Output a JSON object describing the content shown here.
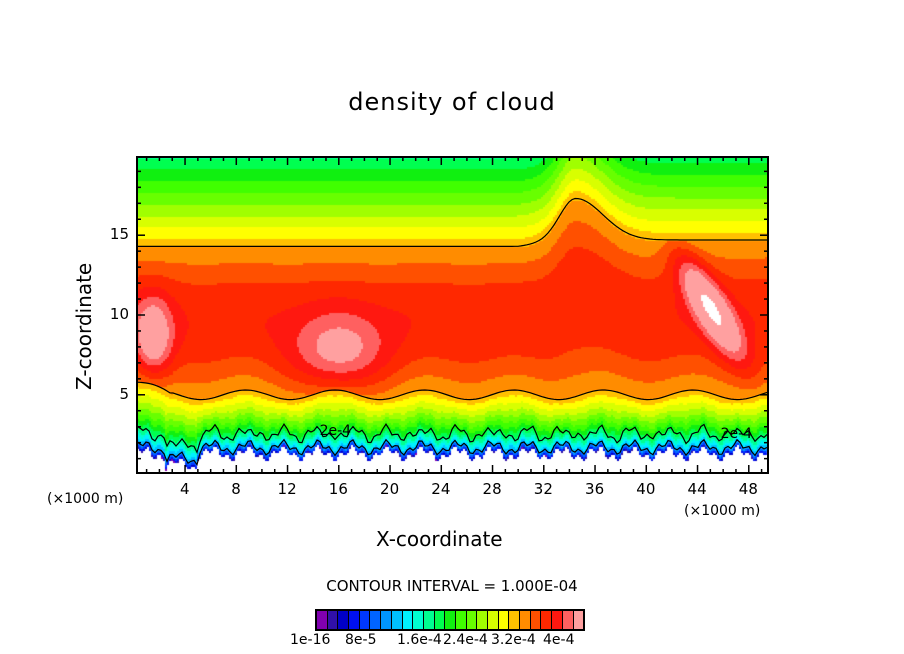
{
  "chart_data": {
    "type": "heatmap",
    "title": "density of cloud",
    "xlabel": "X-coordinate",
    "ylabel": "Z-coordinate",
    "x_unit": "(×1000 m)",
    "y_unit": "(×1000 m)",
    "xlim": [
      0.25,
      49.5
    ],
    "ylim": [
      0.1,
      19.9
    ],
    "x_ticks": [
      "4",
      "8",
      "12",
      "16",
      "20",
      "24",
      "28",
      "32",
      "36",
      "40",
      "44",
      "48"
    ],
    "x_tick_values": [
      4,
      8,
      12,
      16,
      20,
      24,
      28,
      32,
      36,
      40,
      44,
      48
    ],
    "y_ticks": [
      "5",
      "10",
      "15"
    ],
    "y_tick_values": [
      5,
      10,
      15
    ],
    "contour_interval_text": "CONTOUR INTERVAL = 1.000E-04",
    "contour_labels": [
      "2e-4",
      "2e-4"
    ],
    "colorbar_labels": [
      "1e-16",
      "8e-5",
      "1.6e-4",
      "2.4e-4",
      "3.2e-4",
      "4e-4"
    ],
    "colorbar_range": [
      1e-16,
      0.0004
    ],
    "colors": [
      "#8000b0",
      "#3010a8",
      "#0000c8",
      "#0010f0",
      "#0038ff",
      "#0064ff",
      "#0096ff",
      "#00c0ff",
      "#00f0ff",
      "#00ffd0",
      "#00ff90",
      "#00ff50",
      "#10f010",
      "#40ff00",
      "#68ff00",
      "#a0ff00",
      "#d8ff00",
      "#ffff00",
      "#ffc000",
      "#ff8c00",
      "#ff5000",
      "#ff2800",
      "#ff1810",
      "#ff6060",
      "#ffa0a0"
    ]
  }
}
